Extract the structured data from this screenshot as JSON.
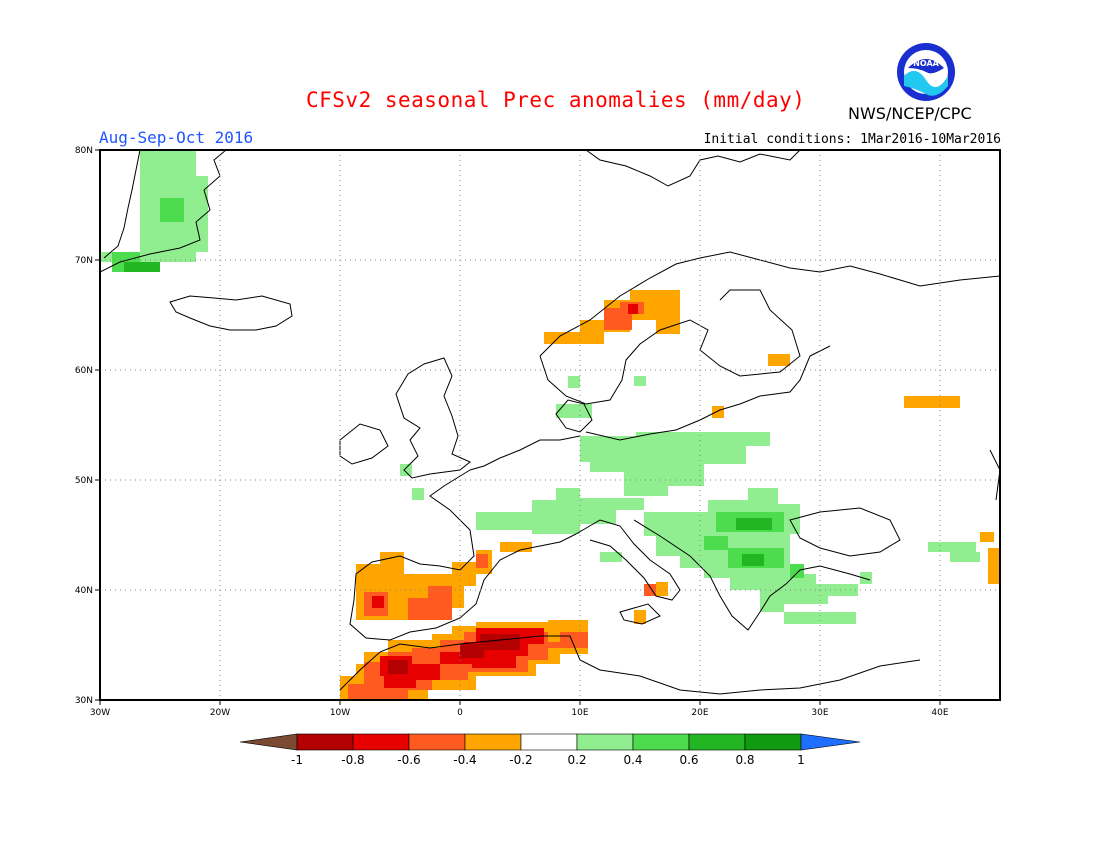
{
  "title": "CFSv2 seasonal Prec anomalies (mm/day)",
  "period": "Aug-Sep-Oct 2016",
  "initial_conditions": "Initial conditions: 1Mar2016-10Mar2016",
  "organization": "NWS/NCEP/CPC",
  "logo_text": "NOAA",
  "axes": {
    "lat_ticks": [
      "80N",
      "70N",
      "60N",
      "50N",
      "40N",
      "30N"
    ],
    "lon_ticks": [
      "30W",
      "20W",
      "10W",
      "0",
      "10E",
      "20E",
      "30E",
      "40E"
    ]
  },
  "colorbar": {
    "labels": [
      "-1",
      "-0.8",
      "-0.6",
      "-0.4",
      "-0.2",
      "0.2",
      "0.4",
      "0.6",
      "0.8",
      "1"
    ],
    "colors": [
      "#7a4a32",
      "#b30000",
      "#e60000",
      "#ff5a1f",
      "#ffa500",
      "#ffffff",
      "#90ee90",
      "#4ddc4d",
      "#22b722",
      "#109a10",
      "#1e6eff"
    ]
  },
  "colors": {
    "title": "#ff0000",
    "period": "#2255ff",
    "green_light": "#90ee90",
    "green_mid": "#4ddc4d",
    "green_dark": "#22b722",
    "orange": "#ffa500",
    "orange_red": "#ff5a1f",
    "red": "#e60000",
    "dark_red": "#b30000"
  }
}
